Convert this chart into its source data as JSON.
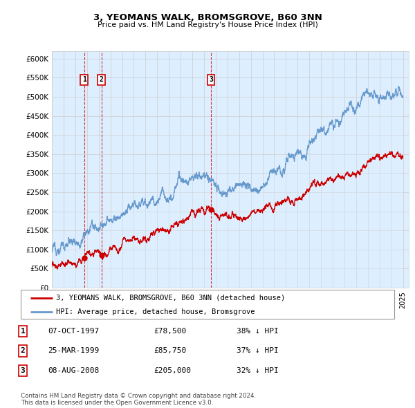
{
  "title": "3, YEOMANS WALK, BROMSGROVE, B60 3NN",
  "subtitle": "Price paid vs. HM Land Registry's House Price Index (HPI)",
  "ylim": [
    0,
    620000
  ],
  "yticks": [
    0,
    50000,
    100000,
    150000,
    200000,
    250000,
    300000,
    350000,
    400000,
    450000,
    500000,
    550000,
    600000
  ],
  "xmin": 1995.0,
  "xmax": 2025.5,
  "transaction_dates": [
    1997.77,
    1999.23,
    2008.6
  ],
  "transaction_prices": [
    78500,
    85750,
    205000
  ],
  "transaction_labels": [
    "1",
    "2",
    "3"
  ],
  "legend_property_label": "3, YEOMANS WALK, BROMSGROVE, B60 3NN (detached house)",
  "legend_hpi_label": "HPI: Average price, detached house, Bromsgrove",
  "table_rows": [
    [
      "1",
      "07-OCT-1997",
      "£78,500",
      "38% ↓ HPI"
    ],
    [
      "2",
      "25-MAR-1999",
      "£85,750",
      "37% ↓ HPI"
    ],
    [
      "3",
      "08-AUG-2008",
      "£205,000",
      "32% ↓ HPI"
    ]
  ],
  "footer": "Contains HM Land Registry data © Crown copyright and database right 2024.\nThis data is licensed under the Open Government Licence v3.0.",
  "property_color": "#cc0000",
  "hpi_color": "#6699cc",
  "hpi_fill_color": "#ddeeff",
  "vline_color": "#cc0000",
  "grid_color": "#cccccc",
  "background_color": "#ddeeff"
}
